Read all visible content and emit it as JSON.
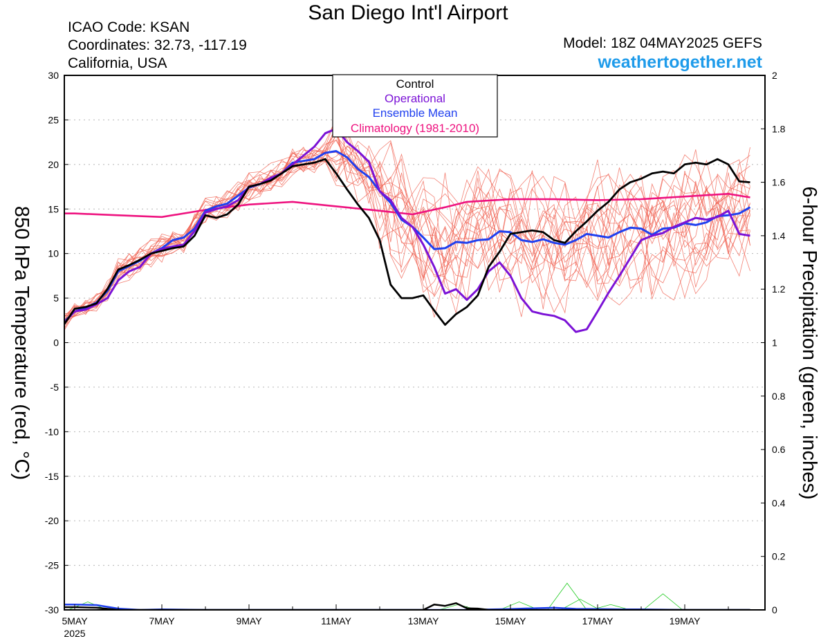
{
  "header": {
    "title": "San Diego Int'l Airport",
    "icao": "ICAO Code: KSAN",
    "coords": "Coordinates: 32.73, -117.19",
    "region": "California, USA",
    "model": "Model: 18Z 04MAY2025 GEFS",
    "site": "weathertogether.net"
  },
  "colors": {
    "control": "#000000",
    "operational": "#7b12d6",
    "ensemble_mean": "#1f3fef",
    "climatology": "#ee127f",
    "members": "#f06050",
    "precip": "#22cc22",
    "site": "#1e9bea"
  },
  "chart_data": {
    "type": "line",
    "ylabel": "850 hPa Temperature (red, °C)",
    "y2label": "6-hour Precipitation (green, inches)",
    "ylim": [
      -30,
      30
    ],
    "y2lim": [
      0,
      2
    ],
    "xlim": [
      0,
      15.5
    ],
    "x_unit": "days from 00Z 5MAY2025",
    "yticks": [
      "30",
      "25",
      "20",
      "15",
      "10",
      "5",
      "0",
      "-5",
      "-10",
      "-15",
      "-20",
      "-25",
      "-30"
    ],
    "y2ticks": [
      "2",
      "1.8",
      "1.6",
      "1.4",
      "1.2",
      "1",
      "0.8",
      "0.6",
      "0.4",
      "0.2",
      "0"
    ],
    "xticks": [
      {
        "x": 0,
        "label": "5MAY",
        "sub": "2025"
      },
      {
        "x": 2,
        "label": "7MAY",
        "sub": ""
      },
      {
        "x": 4,
        "label": "9MAY",
        "sub": ""
      },
      {
        "x": 6,
        "label": "11MAY",
        "sub": ""
      },
      {
        "x": 8,
        "label": "13MAY",
        "sub": ""
      },
      {
        "x": 10,
        "label": "15MAY",
        "sub": ""
      },
      {
        "x": 12,
        "label": "17MAY",
        "sub": ""
      },
      {
        "x": 14,
        "label": "19MAY",
        "sub": ""
      }
    ],
    "legend": [
      "Control",
      "Operational",
      "Ensemble Mean",
      "Climatology (1981-2010)"
    ],
    "grid": "dotted horizontal",
    "series": [
      {
        "name": "Control",
        "role": "control",
        "x": [
          -0.25,
          0,
          0.25,
          0.5,
          0.75,
          1,
          1.25,
          1.5,
          1.75,
          2,
          2.25,
          2.5,
          2.75,
          3,
          3.25,
          3.5,
          3.75,
          4,
          4.25,
          4.5,
          4.75,
          5,
          5.25,
          5.5,
          5.75,
          6,
          6.25,
          6.5,
          6.75,
          7,
          7.25,
          7.5,
          7.75,
          8,
          8.25,
          8.5,
          8.75,
          9,
          9.25,
          9.5,
          9.75,
          10,
          10.25,
          10.5,
          10.75,
          11,
          11.25,
          11.5,
          11.75,
          12,
          12.25,
          12.5,
          12.75,
          13,
          13.25,
          13.5,
          13.75,
          14,
          14.25,
          14.5,
          14.75,
          15,
          15.25,
          15.5
        ],
        "y": [
          2,
          3.8,
          4,
          4.4,
          6,
          8.2,
          8.7,
          9.3,
          10,
          10.3,
          10.6,
          10.8,
          12,
          14.3,
          14,
          14.4,
          15.5,
          17.5,
          17.8,
          18.2,
          19,
          19.8,
          20,
          20.2,
          20.6,
          19,
          17.2,
          15.5,
          14,
          11.5,
          6.5,
          5,
          5,
          5.3,
          3.6,
          2,
          3.2,
          4,
          5.3,
          8.5,
          10.2,
          12.2,
          12.4,
          12.6,
          12.4,
          11.5,
          11.2,
          12.5,
          13.6,
          14.8,
          15.8,
          17.2,
          18,
          18.4,
          19,
          19.2,
          19,
          20,
          20.2,
          20,
          20.6,
          20,
          18.1,
          18
        ]
      },
      {
        "name": "Operational",
        "role": "operational",
        "x": [
          -0.25,
          0,
          0.25,
          0.5,
          0.75,
          1,
          1.25,
          1.5,
          1.75,
          2,
          2.25,
          2.5,
          2.75,
          3,
          3.25,
          3.5,
          3.75,
          4,
          4.25,
          4.5,
          4.75,
          5,
          5.25,
          5.5,
          5.75,
          6,
          6.25,
          6.5,
          6.75,
          7,
          7.25,
          7.5,
          7.75,
          8,
          8.25,
          8.5,
          8.75,
          9,
          9.25,
          9.5,
          9.75,
          10,
          10.25,
          10.5,
          10.75,
          11,
          11.25,
          11.5,
          11.75,
          12,
          12.25,
          12.5,
          12.75,
          13,
          13.25,
          13.5,
          13.75,
          14,
          14.25,
          14.5,
          14.75,
          15,
          15.25,
          15.5
        ],
        "y": [
          2.2,
          3.5,
          3.7,
          4.3,
          5,
          7,
          8,
          8.5,
          10,
          10.5,
          10.8,
          11,
          12.5,
          14.6,
          15,
          15.3,
          16,
          17.5,
          17.8,
          18.5,
          19,
          20,
          21,
          22,
          23.5,
          24,
          22.5,
          21.5,
          20.3,
          17,
          16,
          14,
          13,
          11,
          8.5,
          5.5,
          6,
          4.8,
          6,
          8,
          9,
          7.5,
          5,
          3.5,
          3.2,
          3,
          2.5,
          1.2,
          1.5,
          3.5,
          5.6,
          7.5,
          9.5,
          11.5,
          12,
          12.3,
          13,
          13.5,
          14,
          13.8,
          14.1,
          14.8,
          12.2,
          12
        ]
      },
      {
        "name": "Ensemble Mean",
        "role": "mean",
        "x": [
          -0.25,
          0,
          0.25,
          0.5,
          0.75,
          1,
          1.25,
          1.5,
          1.75,
          2,
          2.25,
          2.5,
          2.75,
          3,
          3.25,
          3.5,
          3.75,
          4,
          4.25,
          4.5,
          4.75,
          5,
          5.25,
          5.5,
          5.75,
          6,
          6.25,
          6.5,
          6.75,
          7,
          7.25,
          7.5,
          7.75,
          8,
          8.25,
          8.5,
          8.75,
          9,
          9.25,
          9.5,
          9.75,
          10,
          10.25,
          10.5,
          10.75,
          11,
          11.25,
          11.5,
          11.75,
          12,
          12.25,
          12.5,
          12.75,
          13,
          13.25,
          13.5,
          13.75,
          14,
          14.25,
          14.5,
          14.75,
          15,
          15.25,
          15.5
        ],
        "y": [
          2.3,
          3.5,
          3.9,
          4.5,
          5.8,
          8,
          8.6,
          9.2,
          10,
          10.6,
          11.5,
          11.8,
          12.8,
          14.8,
          15.3,
          15.6,
          16.5,
          17.4,
          17.8,
          18.3,
          19,
          20.2,
          20.4,
          20.6,
          21.3,
          21.5,
          20.8,
          19.5,
          18.6,
          17,
          15.7,
          13.8,
          13,
          11.8,
          10.5,
          10.6,
          11.3,
          11.2,
          11.5,
          11.6,
          12.5,
          12.4,
          11.5,
          11.3,
          11.6,
          11.2,
          11,
          11.5,
          12.2,
          12,
          11.8,
          12.4,
          12.9,
          12.8,
          12.1,
          12.8,
          12.9,
          13.4,
          13.2,
          13.5,
          14.2,
          14.3,
          14.5,
          15.2
        ]
      },
      {
        "name": "Climatology (1981-2010)",
        "role": "climo",
        "x": [
          -0.25,
          0,
          1,
          2,
          3,
          4,
          5,
          6,
          7,
          7.75,
          8.5,
          9,
          10,
          11,
          12,
          13,
          14,
          15,
          15.5
        ],
        "y": [
          14.5,
          14.5,
          14.3,
          14.1,
          14.9,
          15.5,
          15.8,
          15.3,
          14.8,
          14.4,
          15.2,
          15.8,
          16.1,
          16.1,
          16,
          16.1,
          16.4,
          16.7,
          16.3
        ]
      },
      {
        "name": "6-hour Precipitation",
        "role": "precip_mean",
        "axis": "y2",
        "x": [
          -0.25,
          0,
          0.5,
          1,
          1.5,
          2,
          3,
          5,
          7,
          8,
          9,
          10,
          10.5,
          11,
          11.5,
          12,
          12.5,
          13,
          13.5,
          14,
          14.5,
          15,
          15.5
        ],
        "y": [
          0.02,
          0.02,
          0.018,
          0.005,
          0,
          0.002,
          0,
          0,
          0,
          0,
          0,
          0.003,
          0.006,
          0.008,
          0.004,
          0.003,
          0.002,
          0.002,
          0.001,
          0,
          0,
          0,
          0
        ]
      },
      {
        "name": "Control Precipitation",
        "role": "precip_control",
        "axis": "y2",
        "x": [
          -0.25,
          0,
          0.5,
          1,
          1.5,
          2,
          3,
          5,
          7,
          7.5,
          8,
          8.25,
          8.5,
          8.75,
          9,
          9.25,
          9.5,
          10,
          10.5,
          11,
          12,
          13,
          14,
          15,
          15.5
        ],
        "y": [
          0.01,
          0.01,
          0.008,
          0,
          0,
          0,
          0,
          0,
          0,
          0,
          0,
          0.02,
          0.015,
          0.025,
          0.006,
          0.005,
          0,
          0,
          0,
          0,
          0,
          0,
          0,
          0,
          0
        ]
      }
    ]
  }
}
